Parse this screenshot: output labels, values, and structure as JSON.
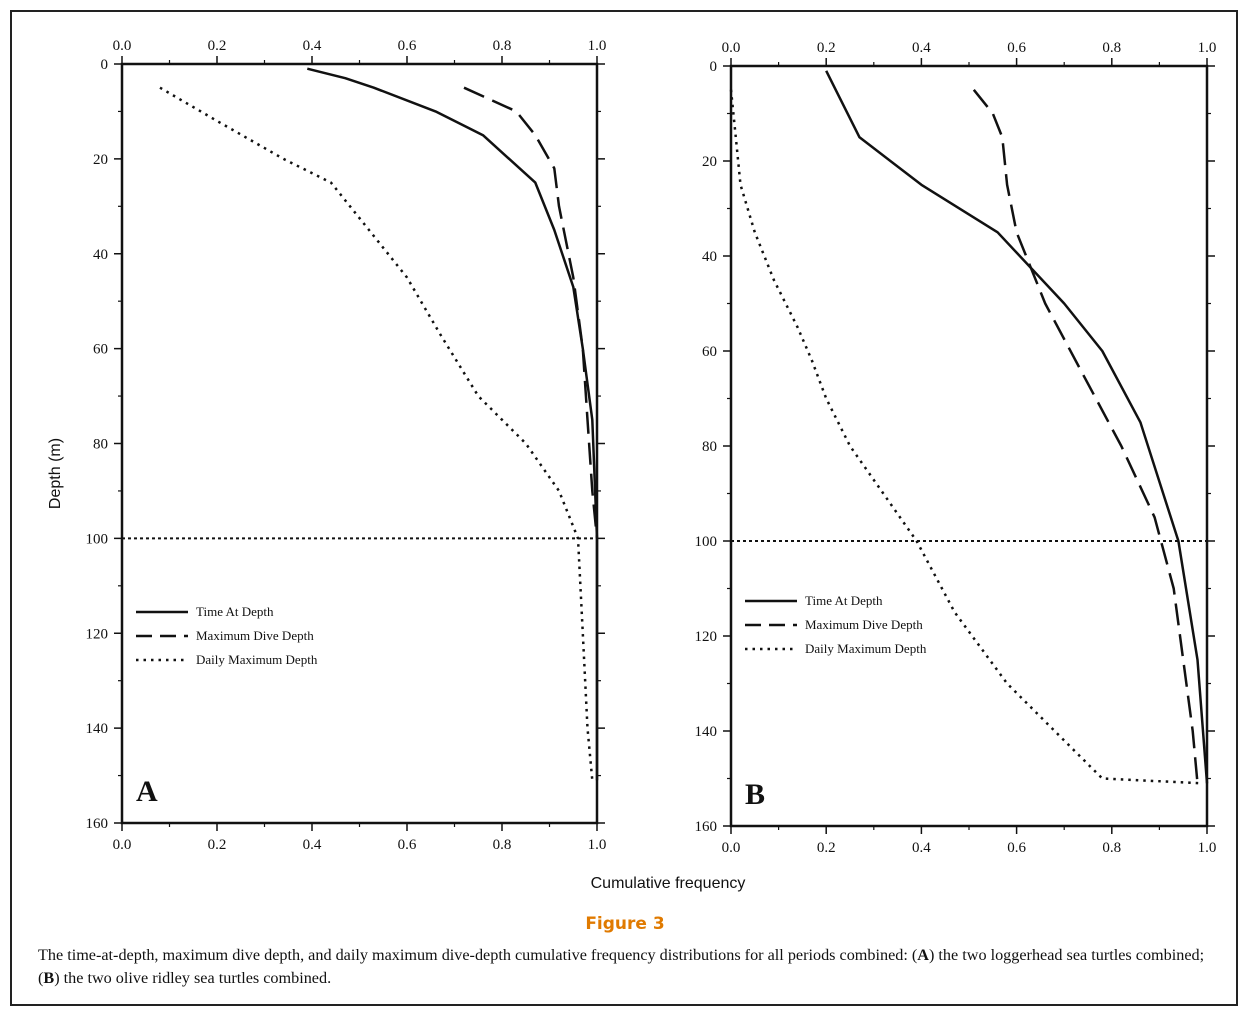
{
  "chart_data": [
    {
      "type": "line",
      "panel_label": "A",
      "xlabel": "Cumulative frequency",
      "ylabel": "Depth (m)",
      "xlim": [
        0,
        1
      ],
      "ylim": [
        0,
        160
      ],
      "y_inverted": true,
      "x_ticks": [
        "0.0",
        "0.2",
        "0.4",
        "0.6",
        "0.8",
        "1.0"
      ],
      "y_ticks": [
        "0",
        "20",
        "40",
        "60",
        "80",
        "100",
        "120",
        "140",
        "160"
      ],
      "legend_position": "lower-left",
      "reference_line": {
        "y": 100,
        "style": "dotted"
      },
      "series": [
        {
          "name": "Time At Depth",
          "style": "solid",
          "points": [
            [
              0.39,
              1
            ],
            [
              0.47,
              3
            ],
            [
              0.53,
              5
            ],
            [
              0.66,
              10
            ],
            [
              0.76,
              15
            ],
            [
              0.87,
              25
            ],
            [
              0.91,
              35
            ],
            [
              0.95,
              47
            ],
            [
              0.97,
              60
            ],
            [
              0.99,
              75
            ],
            [
              1.0,
              100
            ],
            [
              1.0,
              151
            ]
          ]
        },
        {
          "name": "Maximum Dive Depth",
          "style": "dashed",
          "points": [
            [
              0.72,
              5
            ],
            [
              0.83,
              10
            ],
            [
              0.87,
              15
            ],
            [
              0.91,
              22
            ],
            [
              0.92,
              30
            ],
            [
              0.95,
              45
            ],
            [
              0.97,
              60
            ],
            [
              0.98,
              75
            ],
            [
              0.99,
              90
            ],
            [
              1.0,
              100
            ]
          ]
        },
        {
          "name": "Daily Maximum Depth",
          "style": "dotted",
          "points": [
            [
              0.08,
              5
            ],
            [
              0.2,
              12
            ],
            [
              0.34,
              20
            ],
            [
              0.44,
              25
            ],
            [
              0.52,
              35
            ],
            [
              0.6,
              45
            ],
            [
              0.67,
              57
            ],
            [
              0.75,
              70
            ],
            [
              0.85,
              80
            ],
            [
              0.92,
              90
            ],
            [
              0.96,
              100
            ],
            [
              0.97,
              120
            ],
            [
              0.98,
              140
            ],
            [
              0.99,
              151
            ]
          ]
        }
      ]
    },
    {
      "type": "line",
      "panel_label": "B",
      "xlabel": "Cumulative frequency",
      "ylabel": "",
      "xlim": [
        0,
        1
      ],
      "ylim": [
        0,
        160
      ],
      "y_inverted": true,
      "x_ticks": [
        "0.0",
        "0.2",
        "0.4",
        "0.6",
        "0.8",
        "1.0"
      ],
      "y_ticks": [
        "0",
        "20",
        "40",
        "60",
        "80",
        "100",
        "120",
        "140",
        "160"
      ],
      "legend_position": "lower-left",
      "reference_line": {
        "y": 100,
        "style": "dotted"
      },
      "series": [
        {
          "name": "Time At Depth",
          "style": "solid",
          "points": [
            [
              0.2,
              1
            ],
            [
              0.22,
              5
            ],
            [
              0.27,
              15
            ],
            [
              0.4,
              25
            ],
            [
              0.56,
              35
            ],
            [
              0.7,
              50
            ],
            [
              0.78,
              60
            ],
            [
              0.86,
              75
            ],
            [
              0.94,
              100
            ],
            [
              0.98,
              125
            ],
            [
              1.0,
              151
            ]
          ]
        },
        {
          "name": "Maximum Dive Depth",
          "style": "dashed",
          "points": [
            [
              0.51,
              5
            ],
            [
              0.55,
              10
            ],
            [
              0.57,
              15
            ],
            [
              0.58,
              25
            ],
            [
              0.6,
              35
            ],
            [
              0.66,
              50
            ],
            [
              0.74,
              65
            ],
            [
              0.82,
              80
            ],
            [
              0.89,
              95
            ],
            [
              0.93,
              110
            ],
            [
              0.95,
              125
            ],
            [
              0.97,
              140
            ],
            [
              0.98,
              151
            ]
          ]
        },
        {
          "name": "Daily Maximum Depth",
          "style": "dotted",
          "points": [
            [
              0.0,
              5
            ],
            [
              0.01,
              15
            ],
            [
              0.02,
              25
            ],
            [
              0.05,
              35
            ],
            [
              0.09,
              45
            ],
            [
              0.14,
              55
            ],
            [
              0.17,
              62
            ],
            [
              0.2,
              70
            ],
            [
              0.25,
              80
            ],
            [
              0.32,
              90
            ],
            [
              0.39,
              100
            ],
            [
              0.47,
              115
            ],
            [
              0.58,
              130
            ],
            [
              0.7,
              142
            ],
            [
              0.78,
              150
            ],
            [
              0.99,
              151
            ]
          ]
        }
      ]
    }
  ],
  "figure": {
    "title": "Figure 3",
    "caption_parts": [
      "The time-at-depth, maximum dive depth, and daily maximum dive-depth cumulative frequency distributions for all periods combined: (",
      "A",
      ") the two loggerhead sea turtles combined; (",
      "B",
      ") the two olive ridley sea turtles combined."
    ]
  }
}
